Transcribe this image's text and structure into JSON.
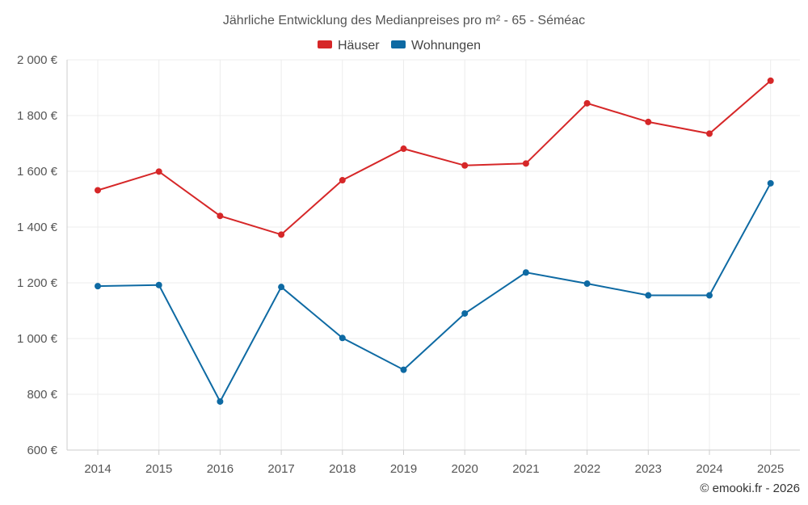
{
  "chart_data": {
    "type": "line",
    "title": "Jährliche Entwicklung des Medianpreises pro m² - 65 - Séméac",
    "categories": [
      "2014",
      "2015",
      "2016",
      "2017",
      "2018",
      "2019",
      "2020",
      "2021",
      "2022",
      "2023",
      "2024",
      "2025"
    ],
    "series": [
      {
        "name": "Häuser",
        "color": "#d62728",
        "values": [
          1532,
          1599,
          1440,
          1373,
          1568,
          1681,
          1621,
          1628,
          1844,
          1777,
          1735,
          1925
        ]
      },
      {
        "name": "Wohnungen",
        "color": "#0e6aa3",
        "values": [
          1188,
          1192,
          774,
          1185,
          1002,
          888,
          1090,
          1237,
          1197,
          1155,
          1155,
          1557
        ]
      }
    ],
    "ylim": [
      600,
      2000
    ],
    "yticks": [
      600,
      800,
      1000,
      1200,
      1400,
      1600,
      1800,
      2000
    ],
    "ytick_labels": [
      "600 €",
      "800 €",
      "1 000 €",
      "1 200 €",
      "1 400 €",
      "1 600 €",
      "1 800 €",
      "2 000 €"
    ],
    "xlabel": "",
    "ylabel": "",
    "grid": true,
    "legend_position": "top-center"
  },
  "credit": "© emooki.fr - 2026"
}
